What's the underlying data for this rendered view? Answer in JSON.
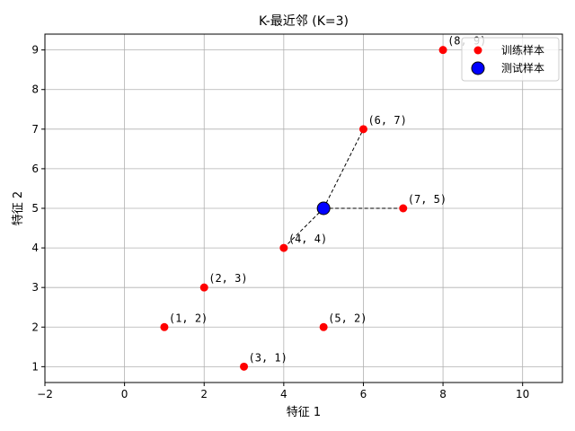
{
  "chart_data": {
    "type": "scatter",
    "title": "K-最近邻 (K=3)",
    "xlabel": "特征 1",
    "ylabel": "特征 2",
    "xlim": [
      -2,
      11
    ],
    "ylim": [
      0.6,
      9.4
    ],
    "xticks": [
      -2,
      0,
      2,
      4,
      6,
      8,
      10
    ],
    "yticks": [
      1,
      2,
      3,
      4,
      5,
      6,
      7,
      8,
      9
    ],
    "grid": true,
    "legend_position": "top-right",
    "series": [
      {
        "name": "训练样本",
        "color": "#ff0000",
        "marker": "circle",
        "points": [
          {
            "x": 1,
            "y": 2,
            "label": "(1, 2)"
          },
          {
            "x": 2,
            "y": 3,
            "label": "(2, 3)"
          },
          {
            "x": 3,
            "y": 1,
            "label": "(3, 1)"
          },
          {
            "x": 4,
            "y": 4,
            "label": "(4, 4)"
          },
          {
            "x": 5,
            "y": 2,
            "label": "(5, 2)"
          },
          {
            "x": 6,
            "y": 7,
            "label": "(6, 7)"
          },
          {
            "x": 7,
            "y": 5,
            "label": "(7, 5)"
          },
          {
            "x": 8,
            "y": 9,
            "label": "(8, 9)"
          }
        ]
      },
      {
        "name": "测试样本",
        "color": "#0000ff",
        "marker": "circle-large",
        "points": [
          {
            "x": 5,
            "y": 5
          }
        ]
      }
    ],
    "neighbor_lines": [
      {
        "from": [
          5,
          5
        ],
        "to": [
          4,
          4
        ]
      },
      {
        "from": [
          5,
          5
        ],
        "to": [
          6,
          7
        ]
      },
      {
        "from": [
          5,
          5
        ],
        "to": [
          7,
          5
        ]
      }
    ]
  }
}
